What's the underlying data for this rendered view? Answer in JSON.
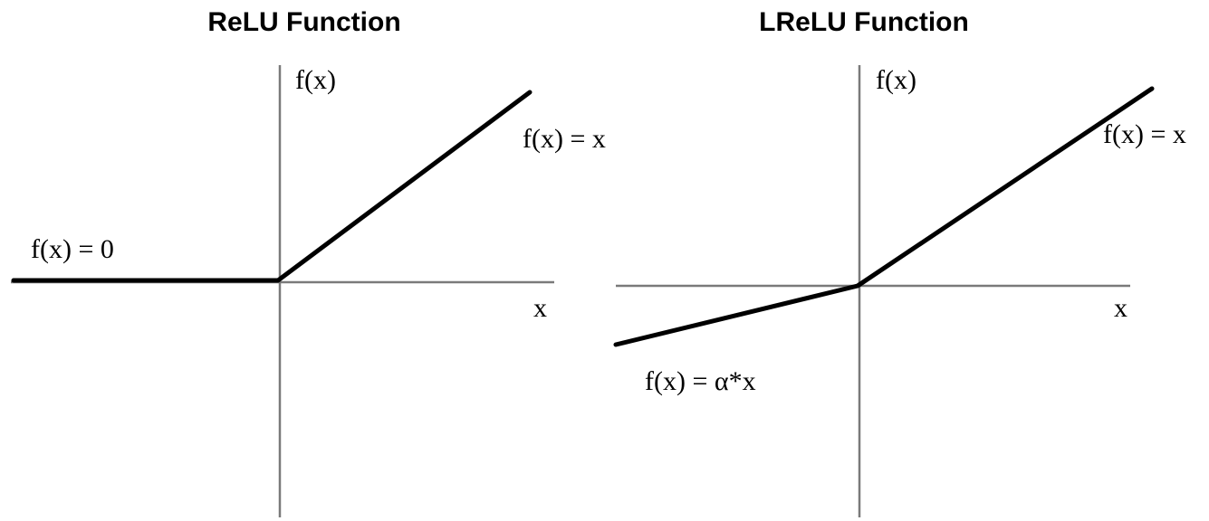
{
  "panels": [
    {
      "title": "ReLU Function",
      "y_axis_label": "f(x)",
      "x_axis_label": "x",
      "left_formula": "f(x) = 0",
      "right_formula": "f(x) = x"
    },
    {
      "title": "LReLU Function",
      "y_axis_label": "f(x)",
      "x_axis_label": "x",
      "left_formula": "f(x) = α*x",
      "right_formula": "f(x) = x"
    }
  ],
  "colors": {
    "axis": "#7a7a7a",
    "curve": "#000000",
    "background": "#ffffff"
  }
}
